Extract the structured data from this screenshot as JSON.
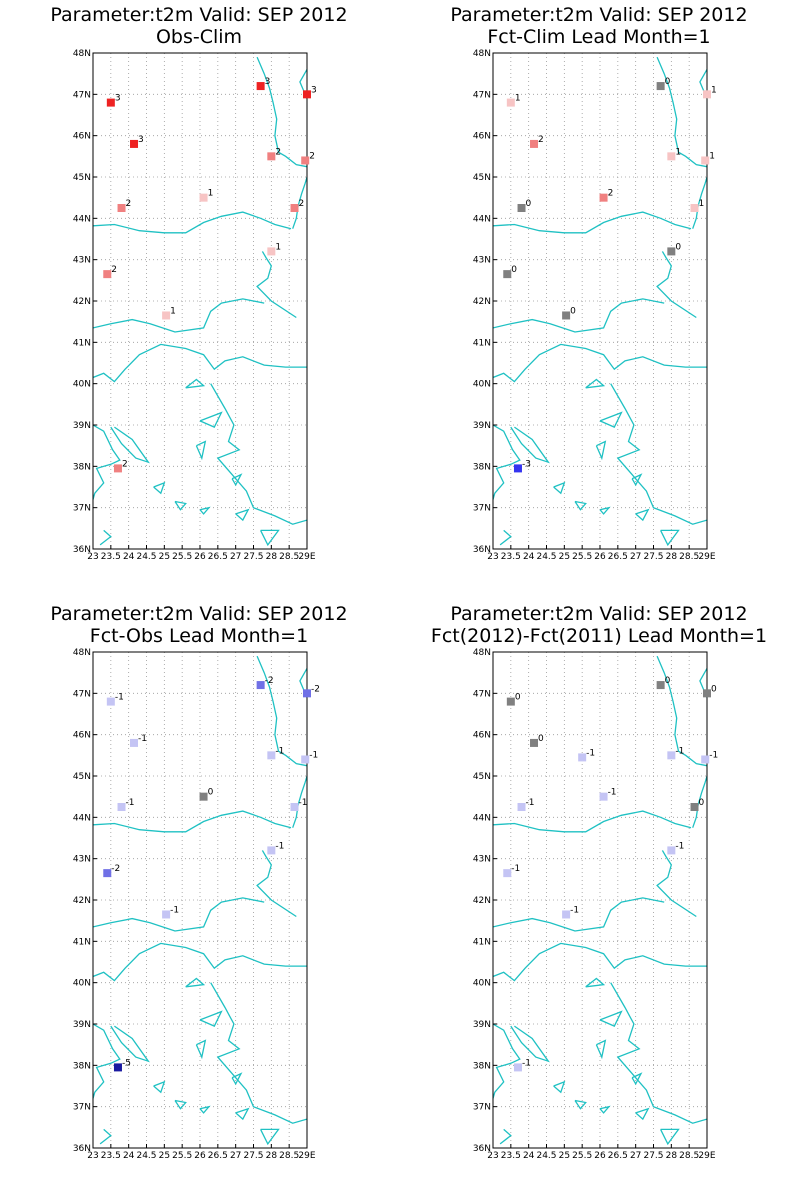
{
  "colors": {
    "coast": "#1fc1c3",
    "grid": "#9a9a9a",
    "frame": "#000000"
  },
  "value_colors": {
    "3": "#ee2222",
    "2": "#f08080",
    "1": "#f7c4c4",
    "0": "#808080",
    "-1": "#c4c4f4",
    "-2": "#7070e6",
    "-3": "#3434f0",
    "-5": "#1a1aa0"
  },
  "panels": [
    {
      "title1": "Parameter:t2m Valid: SEP 2012",
      "title2": "Obs-Clim",
      "yticks": [
        "36N",
        "37N",
        "38N",
        "39N",
        "40N",
        "41N",
        "42N",
        "43N",
        "44N",
        "45N",
        "46N",
        "47N",
        "48N"
      ],
      "xticks": [
        "23",
        "23.5",
        "24",
        "24.5",
        "25",
        "25.5",
        "26",
        "26.5",
        "27",
        "27.5",
        "28",
        "28.5",
        "29E"
      ],
      "stations": [
        {
          "lon": 23.5,
          "lat": 46.8,
          "value": "3"
        },
        {
          "lon": 24.15,
          "lat": 45.8,
          "value": "3"
        },
        {
          "lon": 27.7,
          "lat": 47.2,
          "value": "3"
        },
        {
          "lon": 29.0,
          "lat": 47.0,
          "value": "3"
        },
        {
          "lon": 28.0,
          "lat": 45.5,
          "value": "2"
        },
        {
          "lon": 28.95,
          "lat": 45.4,
          "value": "2"
        },
        {
          "lon": 23.8,
          "lat": 44.25,
          "value": "2"
        },
        {
          "lon": 26.1,
          "lat": 44.5,
          "value": "1"
        },
        {
          "lon": 28.65,
          "lat": 44.25,
          "value": "2"
        },
        {
          "lon": 28.0,
          "lat": 43.2,
          "value": "1"
        },
        {
          "lon": 23.4,
          "lat": 42.65,
          "value": "2"
        },
        {
          "lon": 25.05,
          "lat": 41.65,
          "value": "1"
        },
        {
          "lon": 23.7,
          "lat": 37.95,
          "value": "2"
        }
      ]
    },
    {
      "title1": "Parameter:t2m Valid: SEP 2012",
      "title2": "Fct-Clim Lead Month=1",
      "yticks": [
        "36N",
        "37N",
        "38N",
        "39N",
        "40N",
        "41N",
        "42N",
        "43N",
        "44N",
        "45N",
        "46N",
        "47N",
        "48N"
      ],
      "xticks": [
        "23",
        "23.5",
        "24",
        "24.5",
        "25",
        "25.5",
        "26",
        "26.5",
        "27",
        "27.5",
        "28",
        "28.5",
        "29E"
      ],
      "stations": [
        {
          "lon": 23.5,
          "lat": 46.8,
          "value": "1"
        },
        {
          "lon": 24.15,
          "lat": 45.8,
          "value": "2"
        },
        {
          "lon": 27.7,
          "lat": 47.2,
          "value": "0"
        },
        {
          "lon": 29.0,
          "lat": 47.0,
          "value": "1"
        },
        {
          "lon": 28.0,
          "lat": 45.5,
          "value": "1"
        },
        {
          "lon": 28.95,
          "lat": 45.4,
          "value": "1"
        },
        {
          "lon": 23.8,
          "lat": 44.25,
          "value": "0"
        },
        {
          "lon": 26.1,
          "lat": 44.5,
          "value": "2"
        },
        {
          "lon": 28.65,
          "lat": 44.25,
          "value": "1"
        },
        {
          "lon": 28.0,
          "lat": 43.2,
          "value": "0"
        },
        {
          "lon": 23.4,
          "lat": 42.65,
          "value": "0"
        },
        {
          "lon": 25.05,
          "lat": 41.65,
          "value": "0"
        },
        {
          "lon": 23.7,
          "lat": 37.95,
          "value": "-3"
        }
      ]
    },
    {
      "title1": "Parameter:t2m Valid: SEP 2012",
      "title2": "Fct-Obs Lead Month=1",
      "yticks": [
        "36N",
        "37N",
        "38N",
        "39N",
        "40N",
        "41N",
        "42N",
        "43N",
        "44N",
        "45N",
        "46N",
        "47N",
        "48N"
      ],
      "xticks": [
        "23",
        "23.5",
        "24",
        "24.5",
        "25",
        "25.5",
        "26",
        "26.5",
        "27",
        "27.5",
        "28",
        "28.5",
        "29E"
      ],
      "stations": [
        {
          "lon": 23.5,
          "lat": 46.8,
          "value": "-1"
        },
        {
          "lon": 24.15,
          "lat": 45.8,
          "value": "-1"
        },
        {
          "lon": 27.7,
          "lat": 47.2,
          "value": "-2"
        },
        {
          "lon": 29.0,
          "lat": 47.0,
          "value": "-2"
        },
        {
          "lon": 28.0,
          "lat": 45.5,
          "value": "-1"
        },
        {
          "lon": 28.95,
          "lat": 45.4,
          "value": "-1"
        },
        {
          "lon": 23.8,
          "lat": 44.25,
          "value": "-1"
        },
        {
          "lon": 26.1,
          "lat": 44.5,
          "value": "0"
        },
        {
          "lon": 28.65,
          "lat": 44.25,
          "value": "-1"
        },
        {
          "lon": 28.0,
          "lat": 43.2,
          "value": "-1"
        },
        {
          "lon": 23.4,
          "lat": 42.65,
          "value": "-2"
        },
        {
          "lon": 25.05,
          "lat": 41.65,
          "value": "-1"
        },
        {
          "lon": 23.7,
          "lat": 37.95,
          "value": "-5"
        }
      ]
    },
    {
      "title1": "Parameter:t2m Valid: SEP 2012",
      "title2": "Fct(2012)-Fct(2011) Lead Month=1",
      "yticks": [
        "36N",
        "37N",
        "38N",
        "39N",
        "40N",
        "41N",
        "42N",
        "43N",
        "44N",
        "45N",
        "46N",
        "47N",
        "48N"
      ],
      "xticks": [
        "23",
        "23.5",
        "24",
        "24.5",
        "25",
        "25.5",
        "26",
        "26.5",
        "27",
        "27.5",
        "28",
        "28.5",
        "29E"
      ],
      "stations": [
        {
          "lon": 23.5,
          "lat": 46.8,
          "value": "0"
        },
        {
          "lon": 24.15,
          "lat": 45.8,
          "value": "0"
        },
        {
          "lon": 27.7,
          "lat": 47.2,
          "value": "0"
        },
        {
          "lon": 29.0,
          "lat": 47.0,
          "value": "0"
        },
        {
          "lon": 28.0,
          "lat": 45.5,
          "value": "-1"
        },
        {
          "lon": 28.95,
          "lat": 45.4,
          "value": "-1"
        },
        {
          "lon": 23.8,
          "lat": 44.25,
          "value": "-1"
        },
        {
          "lon": 26.1,
          "lat": 44.5,
          "value": "-1"
        },
        {
          "lon": 25.5,
          "lat": 45.45,
          "value": "-1"
        },
        {
          "lon": 28.65,
          "lat": 44.25,
          "value": "0"
        },
        {
          "lon": 28.0,
          "lat": 43.2,
          "value": "-1"
        },
        {
          "lon": 23.4,
          "lat": 42.65,
          "value": "-1"
        },
        {
          "lon": 25.05,
          "lat": 41.65,
          "value": "-1"
        },
        {
          "lon": 23.7,
          "lat": 37.95,
          "value": "-1"
        }
      ]
    }
  ]
}
